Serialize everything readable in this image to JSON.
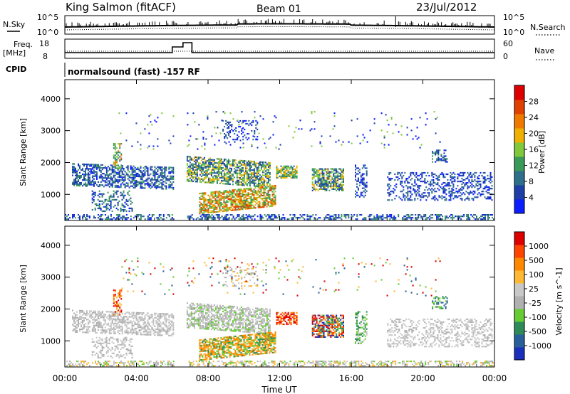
{
  "header": {
    "title": "King Salmon (fitACF)",
    "beam": "Beam 01",
    "date": "23/Jul/2012"
  },
  "noise_panel": {
    "left_label": "N.Sky",
    "right_label": "N.Search",
    "left_ticks": [
      "10^5",
      "10^0"
    ],
    "right_ticks": [
      "10^5",
      "10^0"
    ]
  },
  "freq_panel": {
    "left_label_1": "Freq.",
    "left_label_2": "[MHz]",
    "right_label": "Nave",
    "left_ticks": [
      "18",
      "8"
    ],
    "right_ticks": [
      "60",
      "0"
    ]
  },
  "cpid": {
    "label": "CPID",
    "text": "normalsound (fast) -157 RF"
  },
  "colors": {
    "power_scale": [
      "#0a1eff",
      "#1f3fa8",
      "#2e6f8a",
      "#3a9a5a",
      "#7fc93a",
      "#f0b000",
      "#f07a00",
      "#e04000",
      "#dd0000"
    ],
    "velocity_scale": [
      "#dd0000",
      "#ff4400",
      "#ff8800",
      "#ffb833",
      "#c8c8c8",
      "#b0b0b0",
      "#66cc33",
      "#2e8b57",
      "#2a6099",
      "#1a2fbb"
    ]
  },
  "chart_data": [
    {
      "type": "heatmap",
      "name": "power",
      "ylabel": "Slant Range [km]",
      "ylim": [
        180,
        4600
      ],
      "yticks": [
        "1000",
        "2000",
        "3000",
        "4000"
      ],
      "colorbar_label": "Power [dB]",
      "colorbar_ticks": [
        "4",
        "8",
        "12",
        "16",
        "20",
        "24",
        "28"
      ],
      "colorbar_range": [
        0,
        32
      ]
    },
    {
      "type": "heatmap",
      "name": "velocity",
      "ylabel": "Slant Range [km]",
      "ylim": [
        180,
        4600
      ],
      "yticks": [
        "1000",
        "2000",
        "3000",
        "4000"
      ],
      "colorbar_label": "Velocity [m s^-1]",
      "colorbar_ticks": [
        "1000",
        "500",
        "100",
        "25",
        "-25",
        "-100",
        "-500",
        "-1000"
      ]
    }
  ],
  "x_axis": {
    "xlabel": "Time UT",
    "ticks": [
      "00:00",
      "04:00",
      "08:00",
      "12:00",
      "16:00",
      "20:00",
      "00:00"
    ]
  }
}
